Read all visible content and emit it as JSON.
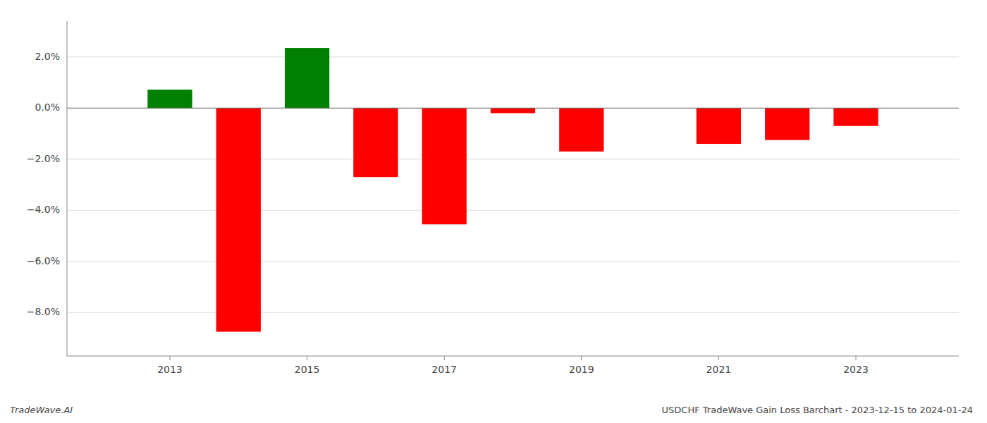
{
  "chart_data": {
    "type": "bar",
    "title": "USDCHF TradeWave Gain Loss Barchart - 2023-12-15 to 2024-01-24",
    "annotations": [
      "TradeWave.AI"
    ],
    "x": [
      2013,
      2014,
      2015,
      2016,
      2017,
      2018,
      2019,
      2020,
      2021,
      2022,
      2023
    ],
    "values": [
      0.0072,
      -0.0875,
      0.0235,
      -0.027,
      -0.0455,
      -0.002,
      -0.017,
      0.0,
      -0.014,
      -0.0125,
      -0.007
    ],
    "colors": [
      "#008000",
      "#ff0000",
      "#008000",
      "#ff0000",
      "#ff0000",
      "#ff0000",
      "#ff0000",
      "#ff0000",
      "#ff0000",
      "#ff0000",
      "#ff0000"
    ],
    "xlim": [
      2011.5,
      2024.5
    ],
    "xticks": [
      2013,
      2015,
      2017,
      2019,
      2021,
      2023
    ],
    "ylim": [
      -0.097,
      0.034
    ],
    "yticks": [
      {
        "value": 0.02,
        "label": "2.0%"
      },
      {
        "value": 0.0,
        "label": "0.0%"
      },
      {
        "value": -0.02,
        "label": "−2.0%"
      },
      {
        "value": -0.04,
        "label": "−4.0%"
      },
      {
        "value": -0.06,
        "label": "−6.0%"
      },
      {
        "value": -0.08,
        "label": "−8.0%"
      }
    ],
    "grid": true
  }
}
